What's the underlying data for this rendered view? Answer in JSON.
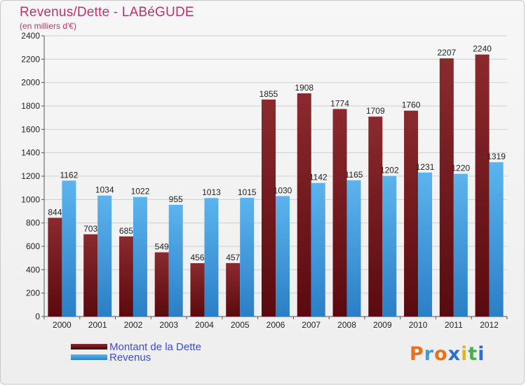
{
  "header": {
    "title": "Revenus/Dette - LABéGUDE",
    "subtitle": "(en milliers d'€)"
  },
  "colors": {
    "dette": "#7a1a1f",
    "revenus": "#3a9be0",
    "grid": "#d0d0d0",
    "title": "#c0306a",
    "legend_text": "#3b4ae0"
  },
  "legend": {
    "items": [
      {
        "label": "Montant de la Dette",
        "color": "#6b0f14"
      },
      {
        "label": "Revenus",
        "color": "#3a9be0"
      }
    ]
  },
  "brand": {
    "text": "Proxiti",
    "letter_colors": [
      "#e8721c",
      "#3a9be0",
      "#e8721c",
      "#2a6fd0",
      "#e8b21c",
      "#4ab04a",
      "#2a6fd0"
    ]
  },
  "chart_data": {
    "type": "bar",
    "categories": [
      "2000",
      "2001",
      "2002",
      "2003",
      "2004",
      "2005",
      "2006",
      "2007",
      "2008",
      "2009",
      "2010",
      "2011",
      "2012"
    ],
    "series": [
      {
        "name": "Montant de la Dette",
        "values": [
          844,
          703,
          685,
          549,
          456,
          457,
          1855,
          1908,
          1774,
          1709,
          1760,
          2207,
          2240
        ]
      },
      {
        "name": "Revenus",
        "values": [
          1162,
          1034,
          1022,
          955,
          1013,
          1015,
          1030,
          1142,
          1165,
          1202,
          1231,
          1220,
          1319
        ]
      }
    ],
    "ylim": [
      0,
      2400
    ],
    "yticks": [
      0,
      200,
      400,
      600,
      800,
      1000,
      1200,
      1400,
      1600,
      1800,
      2000,
      2200,
      2400
    ],
    "grid": true,
    "legend_position": "bottom-left"
  }
}
